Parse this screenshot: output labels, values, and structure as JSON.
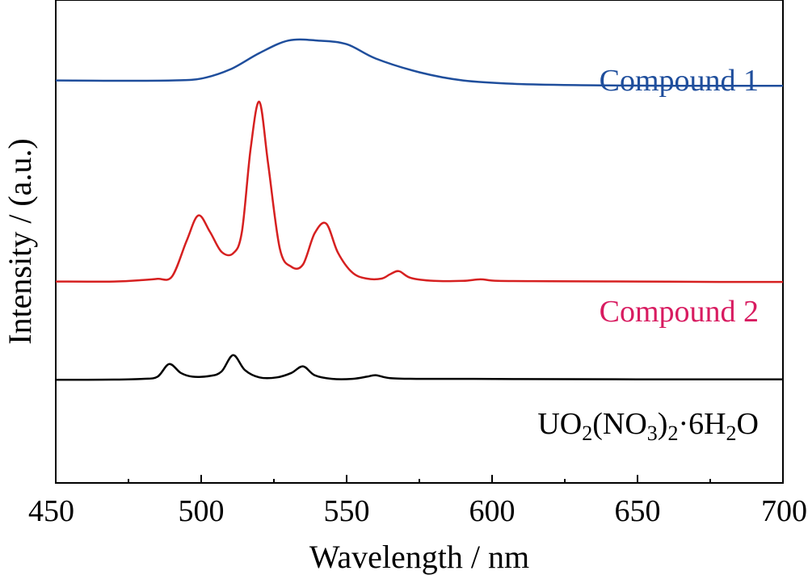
{
  "chart_data": {
    "type": "line",
    "title": "",
    "xlabel": "Wavelength / nm",
    "ylabel": "Intensity / (a.u.)",
    "xlim": [
      450,
      700
    ],
    "ylim": [
      0,
      1
    ],
    "x_ticks": [
      450,
      500,
      550,
      600,
      650,
      700
    ],
    "x_tick_labels": [
      "450",
      "500",
      "550",
      "600",
      "650",
      "700"
    ],
    "y_ticks_shown": false,
    "grid": false,
    "legend": "none",
    "series": [
      {
        "name": "Compound 1",
        "color": "#1f4e9c",
        "label_color": "#1f4e9c",
        "points": [
          [
            450,
            0.8335
          ],
          [
            470,
            0.8328
          ],
          [
            490,
            0.8335
          ],
          [
            500,
            0.8373
          ],
          [
            510,
            0.8564
          ],
          [
            520,
            0.8901
          ],
          [
            530,
            0.916
          ],
          [
            540,
            0.916
          ],
          [
            550,
            0.9085
          ],
          [
            560,
            0.8788
          ],
          [
            575,
            0.8504
          ],
          [
            590,
            0.8335
          ],
          [
            610,
            0.826
          ],
          [
            640,
            0.8231
          ],
          [
            670,
            0.8223
          ],
          [
            700,
            0.8223
          ]
        ]
      },
      {
        "name": "Compound 2",
        "color": "#d62020",
        "label_color": "#d81b60",
        "points": [
          [
            450,
            0.417
          ],
          [
            470,
            0.417
          ],
          [
            480,
            0.42
          ],
          [
            485,
            0.4226
          ],
          [
            490,
            0.4277
          ],
          [
            495,
            0.5015
          ],
          [
            499,
            0.5538
          ],
          [
            503,
            0.52
          ],
          [
            507,
            0.4785
          ],
          [
            511,
            0.4756
          ],
          [
            514,
            0.52
          ],
          [
            517,
            0.6923
          ],
          [
            520,
            0.7892
          ],
          [
            523,
            0.6615
          ],
          [
            527,
            0.4862
          ],
          [
            531,
            0.4477
          ],
          [
            535,
            0.4523
          ],
          [
            539,
            0.5169
          ],
          [
            543,
            0.5369
          ],
          [
            547,
            0.4769
          ],
          [
            552,
            0.4354
          ],
          [
            557,
            0.4231
          ],
          [
            562,
            0.4231
          ],
          [
            565,
            0.4323
          ],
          [
            568,
            0.4385
          ],
          [
            572,
            0.4246
          ],
          [
            580,
            0.4184
          ],
          [
            590,
            0.4184
          ],
          [
            596,
            0.4215
          ],
          [
            602,
            0.4184
          ],
          [
            620,
            0.4177
          ],
          [
            650,
            0.417
          ],
          [
            680,
            0.4163
          ],
          [
            700,
            0.4163
          ]
        ]
      },
      {
        "name": "UO2(NO3)2·6H2O",
        "color": "#000000",
        "label_color": "#000000",
        "points": [
          [
            450,
            0.2135
          ],
          [
            470,
            0.214
          ],
          [
            480,
            0.2155
          ],
          [
            485,
            0.22
          ],
          [
            489,
            0.2462
          ],
          [
            493,
            0.2277
          ],
          [
            497,
            0.22
          ],
          [
            503,
            0.2215
          ],
          [
            507,
            0.2308
          ],
          [
            511,
            0.2646
          ],
          [
            515,
            0.2338
          ],
          [
            520,
            0.2185
          ],
          [
            526,
            0.2185
          ],
          [
            531,
            0.2277
          ],
          [
            535,
            0.2415
          ],
          [
            539,
            0.2231
          ],
          [
            545,
            0.2155
          ],
          [
            552,
            0.2155
          ],
          [
            557,
            0.22
          ],
          [
            560,
            0.2231
          ],
          [
            565,
            0.217
          ],
          [
            575,
            0.2155
          ],
          [
            590,
            0.2155
          ],
          [
            610,
            0.215
          ],
          [
            650,
            0.2145
          ],
          [
            700,
            0.2143
          ]
        ]
      }
    ],
    "series_labels": [
      {
        "text": "Compound 1"
      },
      {
        "text": "Compound 2"
      },
      {
        "prefix": "UO",
        "s1": "2",
        "mid1": "(NO",
        "s2": "3",
        "mid2": ")",
        "s3": "2",
        "mid3": "·6H",
        "s4": "2",
        "suffix": "O"
      }
    ]
  }
}
